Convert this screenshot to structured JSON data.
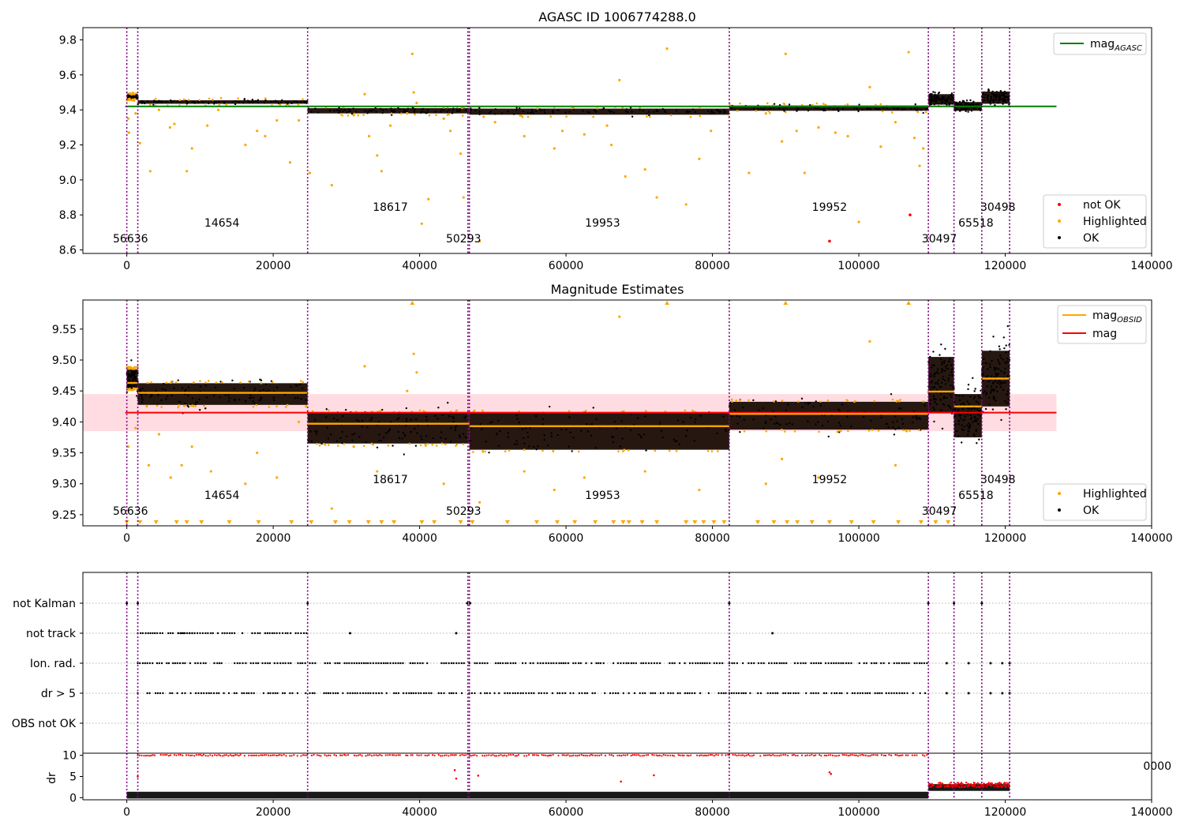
{
  "figure": {
    "title": "AGASC ID 1006774288.0",
    "subtitle": "Magnitude Estimates"
  },
  "colors": {
    "ok": "#000000",
    "highlighted": "#ffa500",
    "not_ok": "#ff0000",
    "mag_agasc": "#008000",
    "mag": "#ff0000",
    "mag_obsid": "#ffa500",
    "obs_boundary": "#800080",
    "band": "#ffc0cb"
  },
  "chart_data": [
    {
      "type": "scatter",
      "title": "AGASC ID 1006774288.0",
      "xlim": [
        -6000,
        140000
      ],
      "ylim": [
        8.58,
        9.87
      ],
      "x_ticks": [
        "0",
        "20000",
        "40000",
        "60000",
        "80000",
        "100000",
        "120000",
        "140000"
      ],
      "y_ticks": [
        "8.6",
        "8.8",
        "9.0",
        "9.2",
        "9.4",
        "9.6",
        "9.8"
      ],
      "legend_lines": [
        {
          "name": "mag",
          "subscript": "AGASC"
        }
      ],
      "legend_markers": [
        "not OK",
        "Highlighted",
        "OK"
      ],
      "legend_lines_position": "top-right",
      "legend_markers_position": "lower-right",
      "mag_agasc": 9.42,
      "segments": [
        {
          "start": 0,
          "end": 1500,
          "level": 9.475,
          "width": 0.02
        },
        {
          "start": 1500,
          "end": 24700,
          "level": 9.445,
          "width": 0.02
        },
        {
          "start": 24700,
          "end": 46800,
          "level": 9.395,
          "width": 0.03
        },
        {
          "start": 46800,
          "end": 82300,
          "level": 9.39,
          "width": 0.035
        },
        {
          "start": 82300,
          "end": 109500,
          "level": 9.41,
          "width": 0.03
        },
        {
          "start": 109500,
          "end": 113000,
          "level": 9.46,
          "width": 0.06
        },
        {
          "start": 113000,
          "end": 116800,
          "level": 9.42,
          "width": 0.05
        },
        {
          "start": 116800,
          "end": 120600,
          "level": 9.47,
          "width": 0.07
        }
      ],
      "not_ok_points": [
        [
          96000,
          8.65
        ],
        [
          107000,
          8.8
        ]
      ],
      "highlighted_points": [
        [
          200,
          9.35
        ],
        [
          300,
          9.27
        ],
        [
          1200,
          9.38
        ],
        [
          1800,
          9.21
        ],
        [
          3200,
          9.05
        ],
        [
          4400,
          9.4
        ],
        [
          5900,
          9.3
        ],
        [
          6500,
          9.32
        ],
        [
          8200,
          9.05
        ],
        [
          8900,
          9.18
        ],
        [
          11000,
          9.31
        ],
        [
          12500,
          9.4
        ],
        [
          16200,
          9.2
        ],
        [
          17800,
          9.28
        ],
        [
          18900,
          9.25
        ],
        [
          20500,
          9.34
        ],
        [
          22300,
          9.1
        ],
        [
          23500,
          9.34
        ],
        [
          25000,
          9.04
        ],
        [
          28000,
          8.97
        ],
        [
          31000,
          9.37
        ],
        [
          32500,
          9.49
        ],
        [
          33100,
          9.25
        ],
        [
          34200,
          9.14
        ],
        [
          34800,
          9.05
        ],
        [
          36000,
          9.31
        ],
        [
          38300,
          9.38
        ],
        [
          39000,
          9.72
        ],
        [
          39200,
          9.5
        ],
        [
          39600,
          9.44
        ],
        [
          40300,
          8.75
        ],
        [
          41200,
          8.89
        ],
        [
          43300,
          9.35
        ],
        [
          44200,
          9.28
        ],
        [
          45600,
          9.15
        ],
        [
          46000,
          8.9
        ],
        [
          48200,
          8.65
        ],
        [
          50300,
          9.33
        ],
        [
          54300,
          9.25
        ],
        [
          58400,
          9.18
        ],
        [
          59500,
          9.28
        ],
        [
          62500,
          9.26
        ],
        [
          65600,
          9.31
        ],
        [
          66200,
          9.2
        ],
        [
          67300,
          9.57
        ],
        [
          68100,
          9.02
        ],
        [
          70800,
          9.06
        ],
        [
          72400,
          8.9
        ],
        [
          73800,
          9.75
        ],
        [
          76400,
          8.86
        ],
        [
          78200,
          9.12
        ],
        [
          79800,
          9.28
        ],
        [
          85000,
          9.04
        ],
        [
          87300,
          9.38
        ],
        [
          89500,
          9.22
        ],
        [
          90000,
          9.72
        ],
        [
          91500,
          9.28
        ],
        [
          92600,
          9.04
        ],
        [
          94500,
          9.3
        ],
        [
          96800,
          9.27
        ],
        [
          98500,
          9.25
        ],
        [
          100000,
          8.76
        ],
        [
          101500,
          9.53
        ],
        [
          103000,
          9.19
        ],
        [
          105000,
          9.33
        ],
        [
          106800,
          9.73
        ],
        [
          107600,
          9.24
        ],
        [
          108300,
          9.08
        ],
        [
          108800,
          9.18
        ]
      ],
      "boundary_labels": [
        {
          "x": 500,
          "level": "low",
          "text": "56636"
        },
        {
          "x": 13000,
          "level": "mid",
          "text": "14654"
        },
        {
          "x": 36000,
          "level": "high",
          "text": "18617"
        },
        {
          "x": 46000,
          "level": "low",
          "text": "50293"
        },
        {
          "x": 65000,
          "level": "mid",
          "text": "19953"
        },
        {
          "x": 96000,
          "level": "high",
          "text": "19952"
        },
        {
          "x": 111000,
          "level": "low",
          "text": "30497"
        },
        {
          "x": 116000,
          "level": "mid",
          "text": "65518"
        },
        {
          "x": 119000,
          "level": "high",
          "text": "30498"
        }
      ]
    },
    {
      "type": "scatter",
      "title": "Magnitude Estimates",
      "xlim": [
        -6000,
        140000
      ],
      "ylim": [
        9.232,
        9.597
      ],
      "x_ticks": [
        "0",
        "20000",
        "40000",
        "60000",
        "80000",
        "100000",
        "120000",
        "140000"
      ],
      "y_ticks": [
        "9.25",
        "9.30",
        "9.35",
        "9.40",
        "9.45",
        "9.50",
        "9.55"
      ],
      "legend_lines": [
        {
          "name": "mag",
          "subscript": "OBSID"
        },
        {
          "name": "mag",
          "subscript": ""
        }
      ],
      "legend_markers": [
        "Highlighted",
        "OK"
      ],
      "legend_lines_position": "top-right",
      "legend_markers_position": "lower-right",
      "mag": 9.415,
      "mag_band": [
        9.385,
        9.445
      ],
      "mag_obsid": [
        {
          "start": 0,
          "end": 1500,
          "value": 9.463
        },
        {
          "start": 1500,
          "end": 24700,
          "value": 9.447
        },
        {
          "start": 24700,
          "end": 46800,
          "value": 9.397
        },
        {
          "start": 46800,
          "end": 82300,
          "value": 9.393
        },
        {
          "start": 82300,
          "end": 109500,
          "value": 9.413
        },
        {
          "start": 109500,
          "end": 113000,
          "value": 9.449
        },
        {
          "start": 113000,
          "end": 116800,
          "value": 9.425
        },
        {
          "start": 116800,
          "end": 120600,
          "value": 9.47
        }
      ],
      "segments": [
        {
          "start": 0,
          "end": 1500,
          "level": 9.47,
          "width": 0.03
        },
        {
          "start": 1500,
          "end": 24700,
          "level": 9.445,
          "width": 0.035
        },
        {
          "start": 24700,
          "end": 46800,
          "level": 9.39,
          "width": 0.05
        },
        {
          "start": 46800,
          "end": 82300,
          "level": 9.385,
          "width": 0.06
        },
        {
          "start": 82300,
          "end": 109500,
          "level": 9.41,
          "width": 0.045
        },
        {
          "start": 109500,
          "end": 113000,
          "level": 9.46,
          "width": 0.09
        },
        {
          "start": 113000,
          "end": 116800,
          "level": 9.41,
          "width": 0.07
        },
        {
          "start": 116800,
          "end": 120600,
          "level": 9.47,
          "width": 0.09
        }
      ],
      "highlighted_points": [
        [
          200,
          9.36
        ],
        [
          1200,
          9.39
        ],
        [
          3000,
          9.33
        ],
        [
          4400,
          9.38
        ],
        [
          6000,
          9.31
        ],
        [
          7500,
          9.33
        ],
        [
          8900,
          9.36
        ],
        [
          11500,
          9.32
        ],
        [
          16200,
          9.3
        ],
        [
          17800,
          9.35
        ],
        [
          20500,
          9.31
        ],
        [
          23500,
          9.4
        ],
        [
          28000,
          9.26
        ],
        [
          31000,
          9.36
        ],
        [
          32500,
          9.49
        ],
        [
          34200,
          9.32
        ],
        [
          38300,
          9.45
        ],
        [
          39200,
          9.51
        ],
        [
          39600,
          9.48
        ],
        [
          43300,
          9.3
        ],
        [
          48200,
          9.27
        ],
        [
          54300,
          9.32
        ],
        [
          58400,
          9.29
        ],
        [
          62500,
          9.31
        ],
        [
          67300,
          9.57
        ],
        [
          70800,
          9.32
        ],
        [
          78200,
          9.29
        ],
        [
          87300,
          9.3
        ],
        [
          89500,
          9.34
        ],
        [
          94500,
          9.31
        ],
        [
          101500,
          9.53
        ],
        [
          105000,
          9.33
        ]
      ],
      "clipped_high_x": [
        39000,
        73800,
        90000,
        106800
      ],
      "clipped_low_x": [
        0,
        1800,
        4000,
        6800,
        8200,
        10200,
        14000,
        18000,
        22500,
        25200,
        28500,
        30400,
        33000,
        34800,
        36500,
        40300,
        42000,
        45600,
        47200,
        52000,
        56000,
        58800,
        61200,
        64000,
        66500,
        67800,
        68600,
        70400,
        72400,
        76400,
        77600,
        78800,
        80200,
        81600,
        86200,
        88400,
        90200,
        91600,
        93600,
        96000,
        99000,
        102000,
        105400,
        108500,
        110500,
        112200
      ],
      "boundary_labels": [
        {
          "x": 500,
          "level": "low",
          "text": "56636"
        },
        {
          "x": 13000,
          "level": "mid",
          "text": "14654"
        },
        {
          "x": 36000,
          "level": "high",
          "text": "18617"
        },
        {
          "x": 46000,
          "level": "low",
          "text": "50293"
        },
        {
          "x": 65000,
          "level": "mid",
          "text": "19953"
        },
        {
          "x": 96000,
          "level": "high",
          "text": "19952"
        },
        {
          "x": 111000,
          "level": "low",
          "text": "30497"
        },
        {
          "x": 116000,
          "level": "mid",
          "text": "65518"
        },
        {
          "x": 119000,
          "level": "high",
          "text": "30498"
        }
      ]
    },
    {
      "type": "scatter",
      "xlim": [
        -6000,
        140000
      ],
      "categories": [
        "not Kalman",
        "not track",
        "Ion. rad.",
        "dr > 5",
        "OBS not OK"
      ],
      "rows": [
        {
          "name": "not Kalman",
          "x": [
            0,
            1500,
            24700,
            46500,
            46900,
            82300,
            109500,
            113000,
            116800
          ]
        },
        {
          "name": "not track",
          "ranges": [
            [
              1500,
              9000
            ],
            [
              7000,
              24700
            ]
          ],
          "x": [
            30500,
            45000,
            88200
          ]
        },
        {
          "name": "Ion. rad.",
          "ranges": [
            [
              1500,
              24700
            ],
            [
              25000,
              46800
            ],
            [
              46800,
              82300
            ],
            [
              82300,
              109500
            ]
          ],
          "x": [
            112000,
            115000,
            118000,
            119600,
            120600
          ]
        },
        {
          "name": "dr > 5",
          "ranges": [
            [
              1500,
              24700
            ],
            [
              25000,
              46800
            ],
            [
              46800,
              82300
            ],
            [
              82300,
              109500
            ]
          ],
          "x": [
            112000,
            115000,
            118000,
            119600,
            120600
          ]
        },
        {
          "name": "OBS not OK",
          "x": []
        }
      ]
    },
    {
      "type": "scatter",
      "xlim": [
        -6000,
        140000
      ],
      "ylabel": "dr",
      "ylim": [
        -0.5,
        10.5
      ],
      "x_ticks": [
        "0",
        "20000",
        "40000",
        "60000",
        "80000",
        "100000",
        "120000",
        "140000"
      ],
      "y_ticks": [
        "0",
        "5",
        "10"
      ],
      "overlap_tick": "0000",
      "ok_band": [
        [
          0,
          109500,
          0.6
        ],
        [
          109500,
          120600,
          2.4
        ]
      ],
      "not_ok_band": [
        [
          109500,
          120600,
          3.0
        ]
      ],
      "dr_10_ranges": [
        [
          1500,
          24700
        ],
        [
          25000,
          46800
        ],
        [
          46800,
          82300
        ],
        [
          82300,
          109500
        ]
      ],
      "scattered_not_ok": [
        [
          1500,
          5
        ],
        [
          44800,
          6.5
        ],
        [
          45000,
          4.5
        ],
        [
          48000,
          5.2
        ],
        [
          67500,
          3.8
        ],
        [
          72000,
          5.3
        ],
        [
          96000,
          6.0
        ],
        [
          96200,
          5.6
        ]
      ]
    }
  ]
}
